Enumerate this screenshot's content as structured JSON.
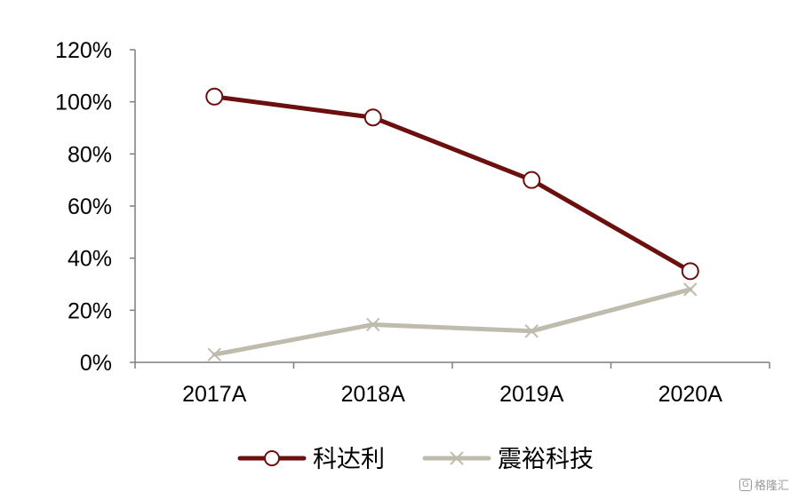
{
  "chart_data": {
    "type": "line",
    "categories": [
      "2017A",
      "2018A",
      "2019A",
      "2020A"
    ],
    "ylim": [
      0,
      120
    ],
    "yticks": [
      0,
      20,
      40,
      60,
      80,
      100,
      120
    ],
    "ytick_labels": [
      "0%",
      "20%",
      "40%",
      "60%",
      "80%",
      "100%",
      "120%"
    ],
    "grid": false,
    "legend_position": "bottom",
    "series": [
      {
        "name": "科达利",
        "values": [
          102,
          94,
          70,
          35
        ],
        "color": "#6b0f0f",
        "marker": "circle"
      },
      {
        "name": "震裕科技",
        "values": [
          3,
          14.5,
          12,
          28
        ],
        "color": "#bfbcad",
        "marker": "x"
      }
    ]
  },
  "watermark": {
    "icon": "G",
    "text": "格隆汇"
  }
}
